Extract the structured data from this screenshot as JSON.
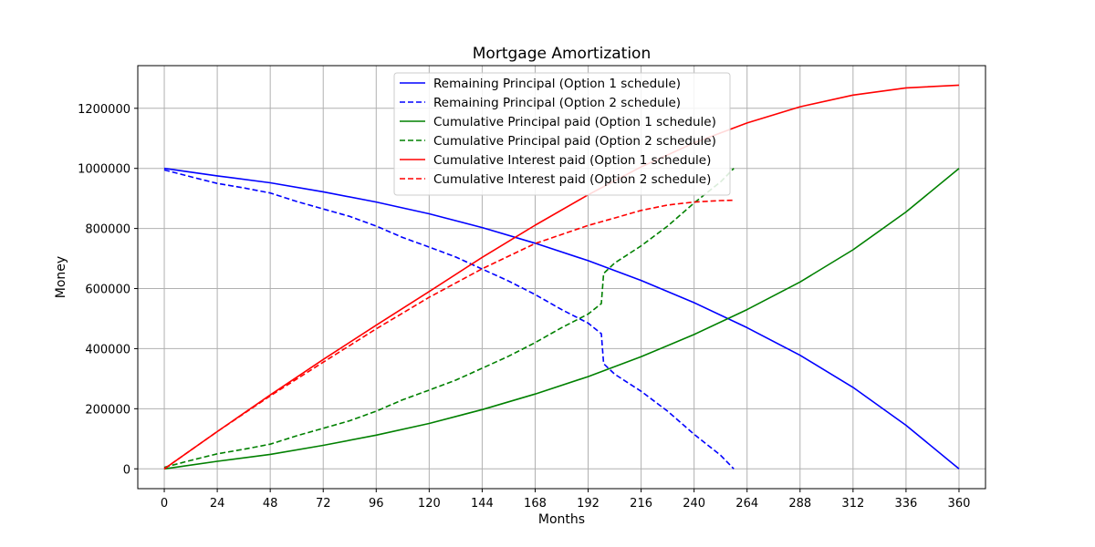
{
  "chart_data": {
    "type": "line",
    "title": "Mortgage Amortization",
    "xlabel": "Months",
    "ylabel": "Money",
    "xlim": [
      -12,
      372
    ],
    "ylim": [
      -66000,
      1342000
    ],
    "xticks": [
      0,
      24,
      48,
      72,
      96,
      120,
      144,
      168,
      192,
      216,
      240,
      264,
      288,
      312,
      336,
      360
    ],
    "yticks": [
      0,
      200000,
      400000,
      600000,
      800000,
      1000000,
      1200000
    ],
    "grid": true,
    "legend_position": "upper center",
    "series": [
      {
        "name": "Remaining Principal (Option 1 schedule)",
        "color": "#0000ff",
        "style": "solid",
        "x": [
          0,
          24,
          48,
          72,
          96,
          120,
          144,
          168,
          192,
          216,
          240,
          264,
          288,
          312,
          336,
          360
        ],
        "y": [
          1000000,
          975000,
          952000,
          922000,
          888000,
          849000,
          803000,
          751000,
          693000,
          627000,
          553000,
          470000,
          378000,
          271000,
          145000,
          0
        ]
      },
      {
        "name": "Remaining Principal (Option 2 schedule)",
        "color": "#0000ff",
        "style": "dashed",
        "x": [
          0,
          12,
          24,
          36,
          48,
          60,
          72,
          84,
          96,
          108,
          120,
          132,
          144,
          156,
          168,
          180,
          192,
          198,
          199,
          204,
          216,
          228,
          240,
          252,
          258
        ],
        "y": [
          995000,
          972000,
          950000,
          935000,
          918000,
          890000,
          865000,
          840000,
          808000,
          770000,
          738000,
          705000,
          665000,
          625000,
          580000,
          530000,
          485000,
          450000,
          350000,
          315000,
          258000,
          192000,
          115000,
          45000,
          0
        ]
      },
      {
        "name": "Cumulative Principal paid (Option 1 schedule)",
        "color": "#008000",
        "style": "solid",
        "x": [
          0,
          24,
          48,
          72,
          96,
          120,
          144,
          168,
          192,
          216,
          240,
          264,
          288,
          312,
          336,
          360
        ],
        "y": [
          0,
          25000,
          48000,
          78000,
          112000,
          151000,
          197000,
          249000,
          307000,
          373000,
          447000,
          530000,
          622000,
          729000,
          855000,
          1000000
        ]
      },
      {
        "name": "Cumulative Principal paid (Option 2 schedule)",
        "color": "#008000",
        "style": "dashed",
        "x": [
          0,
          12,
          24,
          36,
          48,
          60,
          72,
          84,
          96,
          108,
          120,
          132,
          144,
          156,
          168,
          180,
          192,
          198,
          199,
          204,
          216,
          228,
          240,
          252,
          258
        ],
        "y": [
          5000,
          28000,
          50000,
          65000,
          82000,
          110000,
          135000,
          160000,
          192000,
          230000,
          262000,
          295000,
          335000,
          375000,
          420000,
          470000,
          515000,
          550000,
          650000,
          685000,
          742000,
          808000,
          885000,
          955000,
          1000000
        ]
      },
      {
        "name": "Cumulative Interest paid (Option 1 schedule)",
        "color": "#ff0000",
        "style": "solid",
        "x": [
          0,
          24,
          48,
          72,
          96,
          120,
          144,
          168,
          192,
          216,
          240,
          264,
          288,
          312,
          336,
          360
        ],
        "y": [
          0,
          124000,
          246000,
          364000,
          478000,
          590000,
          704000,
          811000,
          912000,
          1005000,
          1085000,
          1151000,
          1205000,
          1244000,
          1268000,
          1277000
        ]
      },
      {
        "name": "Cumulative Interest paid (Option 2 schedule)",
        "color": "#ff0000",
        "style": "dashed",
        "x": [
          0,
          24,
          48,
          72,
          96,
          120,
          144,
          168,
          192,
          204,
          216,
          228,
          240,
          252,
          258
        ],
        "y": [
          0,
          124000,
          243000,
          355000,
          466000,
          571000,
          666000,
          750000,
          810000,
          835000,
          860000,
          878000,
          888000,
          893000,
          894000
        ]
      }
    ]
  }
}
